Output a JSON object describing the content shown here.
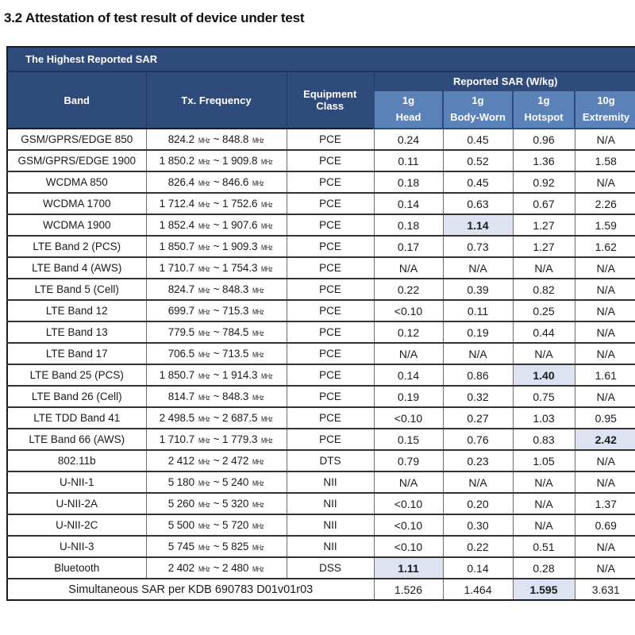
{
  "page": {
    "title": "3.2 Attestation of test result of device under test"
  },
  "colors": {
    "header_navy": "#2e4b7c",
    "subheader_blue": "#5a81b8",
    "highlight_blue": "#dde3f1",
    "border_dark": "#1d1d1d"
  },
  "table": {
    "caption": "The Highest Reported SAR",
    "frequency_unit": "MHz",
    "frequency_separator": "~",
    "headers": {
      "band": "Band",
      "tx_frequency": "Tx. Frequency",
      "equipment_class": "Equipment Class",
      "reported_sar": "Reported SAR (W/kg)",
      "sub_columns": [
        {
          "line1": "1g",
          "line2": "Head"
        },
        {
          "line1": "1g",
          "line2": "Body-Worn"
        },
        {
          "line1": "1g",
          "line2": "Hotspot"
        },
        {
          "line1": "10g",
          "line2": "Extremity"
        }
      ]
    },
    "rows": [
      {
        "band": "GSM/GPRS/EDGE 850",
        "freq_low": "824.2",
        "freq_high": "848.8",
        "equipment": "PCE",
        "head": "0.24",
        "body_worn": "0.45",
        "hotspot": "0.96",
        "extremity": "N/A",
        "highlight": null
      },
      {
        "band": "GSM/GPRS/EDGE 1900",
        "freq_low": "1 850.2",
        "freq_high": "1 909.8",
        "equipment": "PCE",
        "head": "0.11",
        "body_worn": "0.52",
        "hotspot": "1.36",
        "extremity": "1.58",
        "highlight": null
      },
      {
        "band": "WCDMA 850",
        "freq_low": "826.4",
        "freq_high": "846.6",
        "equipment": "PCE",
        "head": "0.18",
        "body_worn": "0.45",
        "hotspot": "0.92",
        "extremity": "N/A",
        "highlight": null
      },
      {
        "band": "WCDMA 1700",
        "freq_low": "1 712.4",
        "freq_high": "1 752.6",
        "equipment": "PCE",
        "head": "0.14",
        "body_worn": "0.63",
        "hotspot": "0.67",
        "extremity": "2.26",
        "highlight": null
      },
      {
        "band": "WCDMA 1900",
        "freq_low": "1 852.4",
        "freq_high": "1 907.6",
        "equipment": "PCE",
        "head": "0.18",
        "body_worn": "1.14",
        "hotspot": "1.27",
        "extremity": "1.59",
        "highlight": "body_worn"
      },
      {
        "band": "LTE Band 2 (PCS)",
        "freq_low": "1 850.7",
        "freq_high": "1 909.3",
        "equipment": "PCE",
        "head": "0.17",
        "body_worn": "0.73",
        "hotspot": "1.27",
        "extremity": "1.62",
        "highlight": null
      },
      {
        "band": "LTE Band 4 (AWS)",
        "freq_low": "1 710.7",
        "freq_high": "1 754.3",
        "equipment": "PCE",
        "head": "N/A",
        "body_worn": "N/A",
        "hotspot": "N/A",
        "extremity": "N/A",
        "highlight": null
      },
      {
        "band": "LTE Band 5 (Cell)",
        "freq_low": "824.7",
        "freq_high": "848.3",
        "equipment": "PCE",
        "head": "0.22",
        "body_worn": "0.39",
        "hotspot": "0.82",
        "extremity": "N/A",
        "highlight": null
      },
      {
        "band": "LTE Band 12",
        "freq_low": "699.7",
        "freq_high": "715.3",
        "equipment": "PCE",
        "head": "<0.10",
        "body_worn": "0.11",
        "hotspot": "0.25",
        "extremity": "N/A",
        "highlight": null
      },
      {
        "band": "LTE Band 13",
        "freq_low": "779.5",
        "freq_high": "784.5",
        "equipment": "PCE",
        "head": "0.12",
        "body_worn": "0.19",
        "hotspot": "0.44",
        "extremity": "N/A",
        "highlight": null
      },
      {
        "band": "LTE Band 17",
        "freq_low": "706.5",
        "freq_high": "713.5",
        "equipment": "PCE",
        "head": "N/A",
        "body_worn": "N/A",
        "hotspot": "N/A",
        "extremity": "N/A",
        "highlight": null
      },
      {
        "band": "LTE Band 25 (PCS)",
        "freq_low": "1 850.7",
        "freq_high": "1 914.3",
        "equipment": "PCE",
        "head": "0.14",
        "body_worn": "0.86",
        "hotspot": "1.40",
        "extremity": "1.61",
        "highlight": "hotspot"
      },
      {
        "band": "LTE Band 26 (Cell)",
        "freq_low": "814.7",
        "freq_high": "848.3",
        "equipment": "PCE",
        "head": "0.19",
        "body_worn": "0.32",
        "hotspot": "0.75",
        "extremity": "N/A",
        "highlight": null
      },
      {
        "band": "LTE TDD Band 41",
        "freq_low": "2 498.5",
        "freq_high": "2 687.5",
        "equipment": "PCE",
        "head": "<0.10",
        "body_worn": "0.27",
        "hotspot": "1.03",
        "extremity": "0.95",
        "highlight": null
      },
      {
        "band": "LTE Band 66 (AWS)",
        "freq_low": "1 710.7",
        "freq_high": "1 779.3",
        "equipment": "PCE",
        "head": "0.15",
        "body_worn": "0.76",
        "hotspot": "0.83",
        "extremity": "2.42",
        "highlight": "extremity"
      },
      {
        "band": "802.11b",
        "freq_low": "2 412",
        "freq_high": "2 472",
        "equipment": "DTS",
        "head": "0.79",
        "body_worn": "0.23",
        "hotspot": "1.05",
        "extremity": "N/A",
        "highlight": null
      },
      {
        "band": "U-NII-1",
        "freq_low": "5 180",
        "freq_high": "5 240",
        "equipment": "NII",
        "head": "N/A",
        "body_worn": "N/A",
        "hotspot": "N/A",
        "extremity": "N/A",
        "highlight": null
      },
      {
        "band": "U-NII-2A",
        "freq_low": "5 260",
        "freq_high": "5 320",
        "equipment": "NII",
        "head": "<0.10",
        "body_worn": "0.20",
        "hotspot": "N/A",
        "extremity": "1.37",
        "highlight": null
      },
      {
        "band": "U-NII-2C",
        "freq_low": "5 500",
        "freq_high": "5 720",
        "equipment": "NII",
        "head": "<0.10",
        "body_worn": "0.30",
        "hotspot": "N/A",
        "extremity": "0.69",
        "highlight": null
      },
      {
        "band": "U-NII-3",
        "freq_low": "5 745",
        "freq_high": "5 825",
        "equipment": "NII",
        "head": "<0.10",
        "body_worn": "0.22",
        "hotspot": "0.51",
        "extremity": "N/A",
        "highlight": null
      },
      {
        "band": "Bluetooth",
        "freq_low": "2 402",
        "freq_high": "2 480",
        "equipment": "DSS",
        "head": "1.11",
        "body_worn": "0.14",
        "hotspot": "0.28",
        "extremity": "N/A",
        "highlight": "head"
      }
    ],
    "simultaneous_row": {
      "label": "Simultaneous SAR per KDB 690783 D01v01r03",
      "head": "1.526",
      "body_worn": "1.464",
      "hotspot": "1.595",
      "extremity": "3.631",
      "highlight": "hotspot"
    }
  }
}
